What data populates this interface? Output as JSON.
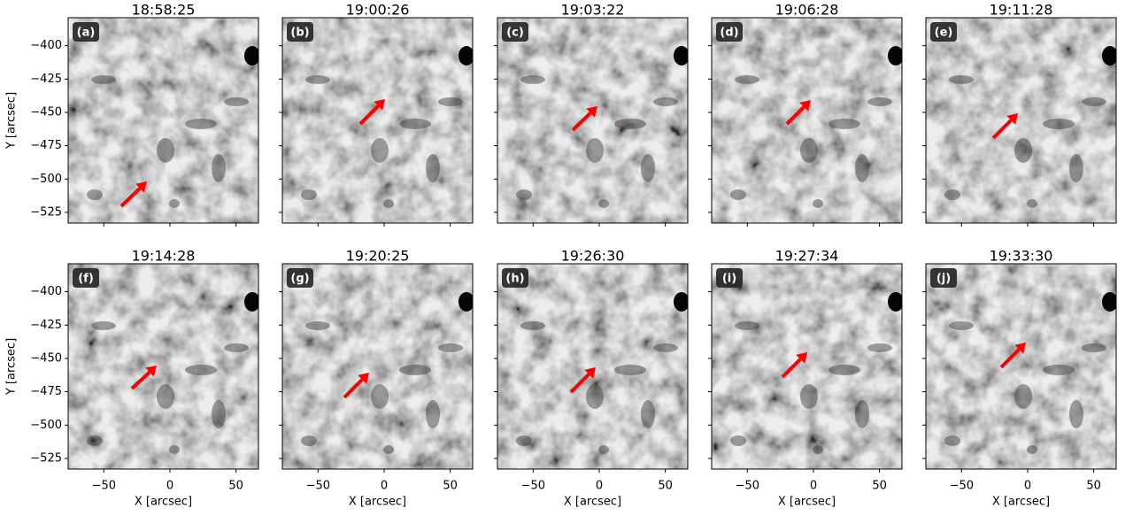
{
  "chart_data": [
    {
      "type": "image",
      "title": "18:58:25",
      "label": "(a)",
      "xlim": [
        -77,
        67
      ],
      "ylim": [
        -533,
        -379
      ],
      "xticks": [
        -50,
        0,
        50
      ],
      "yticks": [
        {
          "value": -400,
          "label": "−400"
        },
        {
          "value": -425,
          "label": "−425"
        },
        {
          "value": -450,
          "label": "−450"
        },
        {
          "value": -475,
          "label": "−475"
        },
        {
          "value": -500,
          "label": "−500"
        },
        {
          "value": -525,
          "label": "−525"
        }
      ],
      "ylabel": "Y [arcsec]"
    },
    {
      "type": "image",
      "title": "19:00:26",
      "label": "(b)",
      "xlim": [
        -77,
        67
      ],
      "ylim": [
        -533,
        -379
      ],
      "xticks": [
        -50,
        0,
        50
      ],
      "yticks": [
        -400,
        -425,
        -450,
        -475,
        -500,
        -525
      ]
    },
    {
      "type": "image",
      "title": "19:03:22",
      "label": "(c)",
      "xlim": [
        -77,
        67
      ],
      "ylim": [
        -533,
        -379
      ],
      "xticks": [
        -50,
        0,
        50
      ],
      "yticks": [
        -400,
        -425,
        -450,
        -475,
        -500,
        -525
      ]
    },
    {
      "type": "image",
      "title": "19:06:28",
      "label": "(d)",
      "xlim": [
        -77,
        67
      ],
      "ylim": [
        -533,
        -379
      ],
      "xticks": [
        -50,
        0,
        50
      ],
      "yticks": [
        -400,
        -425,
        -450,
        -475,
        -500,
        -525
      ]
    },
    {
      "type": "image",
      "title": "19:11:28",
      "label": "(e)",
      "xlim": [
        -77,
        67
      ],
      "ylim": [
        -533,
        -379
      ],
      "xticks": [
        -50,
        0,
        50
      ],
      "yticks": [
        -400,
        -425,
        -450,
        -475,
        -500,
        -525
      ]
    },
    {
      "type": "image",
      "title": "19:14:28",
      "label": "(f)",
      "xlim": [
        -77,
        67
      ],
      "ylim": [
        -533,
        -379
      ],
      "xticks": [
        {
          "value": -50,
          "label": "−50"
        },
        0,
        50
      ],
      "yticks": [
        {
          "value": -400,
          "label": "−400"
        },
        {
          "value": -425,
          "label": "−425"
        },
        {
          "value": -450,
          "label": "−450"
        },
        {
          "value": -475,
          "label": "−475"
        },
        {
          "value": -500,
          "label": "−500"
        },
        {
          "value": -525,
          "label": "−525"
        }
      ],
      "ylabel": "Y [arcsec]",
      "xlabel": "X [arcsec]"
    },
    {
      "type": "image",
      "title": "19:20:25",
      "label": "(g)",
      "xlim": [
        -77,
        67
      ],
      "ylim": [
        -533,
        -379
      ],
      "xticks": [
        {
          "value": -50,
          "label": "−50"
        },
        0,
        50
      ],
      "yticks": [
        -400,
        -425,
        -450,
        -475,
        -500,
        -525
      ],
      "xlabel": "X [arcsec]"
    },
    {
      "type": "image",
      "title": "19:26:30",
      "label": "(h)",
      "xlim": [
        -77,
        67
      ],
      "ylim": [
        -533,
        -379
      ],
      "xticks": [
        {
          "value": -50,
          "label": "−50"
        },
        0,
        50
      ],
      "yticks": [
        -400,
        -425,
        -450,
        -475,
        -500,
        -525
      ],
      "xlabel": "X [arcsec]"
    },
    {
      "type": "image",
      "title": "19:27:34",
      "label": "(i)",
      "xlim": [
        -77,
        67
      ],
      "ylim": [
        -533,
        -379
      ],
      "xticks": [
        {
          "value": -50,
          "label": "−50"
        },
        0,
        50
      ],
      "yticks": [
        -400,
        -425,
        -450,
        -475,
        -500,
        -525
      ],
      "xlabel": "X [arcsec]"
    },
    {
      "type": "image",
      "title": "19:33:30",
      "label": "(j)",
      "xlim": [
        -77,
        67
      ],
      "ylim": [
        -533,
        -379
      ],
      "xticks": [
        {
          "value": -50,
          "label": "−50"
        },
        0,
        50
      ],
      "yticks": [
        -400,
        -425,
        -450,
        -475,
        -500,
        -525
      ],
      "xlabel": "X [arcsec]"
    }
  ]
}
